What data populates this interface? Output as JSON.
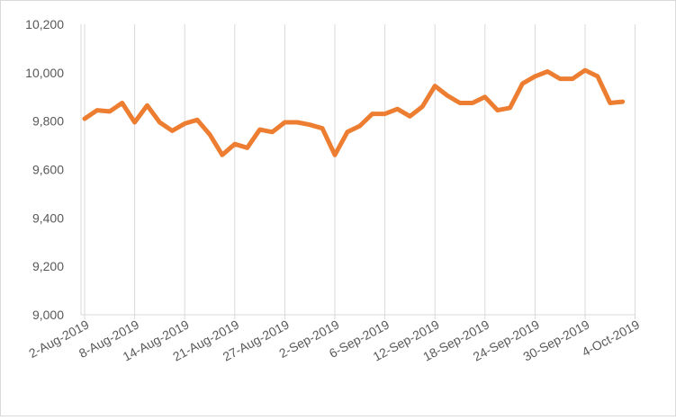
{
  "chart_data": {
    "type": "line",
    "title": "",
    "xlabel": "",
    "ylabel": "",
    "ylim": [
      9000,
      10200
    ],
    "yticks": [
      "9,000",
      "9,200",
      "9,400",
      "9,600",
      "9,800",
      "10,000",
      "10,200"
    ],
    "ytick_values": [
      9000,
      9200,
      9400,
      9600,
      9800,
      10000,
      10200
    ],
    "grid": "vertical",
    "legend": "none",
    "line_color": "#ed7d31",
    "x_tick_labels": [
      "2-Aug-2019",
      "8-Aug-2019",
      "14-Aug-2019",
      "21-Aug-2019",
      "27-Aug-2019",
      "2-Sep-2019",
      "6-Sep-2019",
      "12-Sep-2019",
      "18-Sep-2019",
      "24-Sep-2019",
      "30-Sep-2019",
      "4-Oct-2019"
    ],
    "x_tick_index": [
      0,
      4,
      8,
      12,
      16,
      20,
      24,
      28,
      32,
      36,
      40,
      44
    ],
    "series": [
      {
        "values": [
          9810,
          9845,
          9840,
          9875,
          9795,
          9865,
          9795,
          9760,
          9790,
          9805,
          9745,
          9660,
          9705,
          9690,
          9765,
          9755,
          9795,
          9795,
          9785,
          9770,
          9660,
          9755,
          9780,
          9830,
          9830,
          9850,
          9820,
          9860,
          9945,
          9905,
          9875,
          9875,
          9900,
          9845,
          9855,
          9955,
          9985,
          10005,
          9975,
          9975,
          10010,
          9985,
          9875,
          9880
        ]
      }
    ]
  }
}
